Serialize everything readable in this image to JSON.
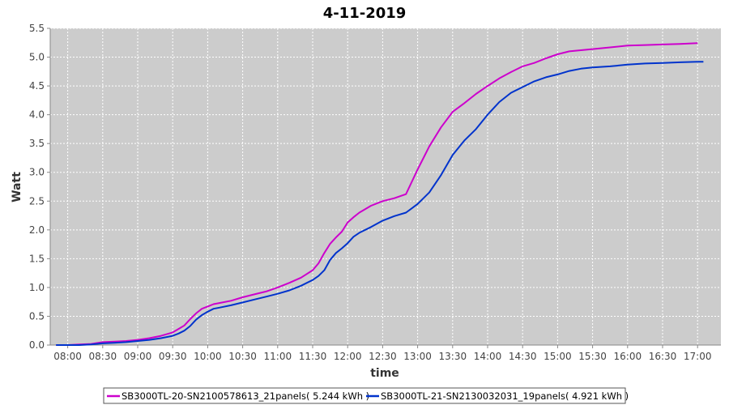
{
  "chart_data": {
    "type": "line",
    "title": "4-11-2019",
    "xlabel": "time",
    "ylabel": "Watt",
    "ylim": [
      0,
      5.5
    ],
    "xlim": [
      "07:45",
      "17:20"
    ],
    "x_ticks": [
      "08:00",
      "08:30",
      "09:00",
      "09:30",
      "10:00",
      "10:30",
      "11:00",
      "11:30",
      "12:00",
      "12:30",
      "13:00",
      "13:30",
      "14:00",
      "14:30",
      "15:00",
      "15:30",
      "16:00",
      "16:30",
      "17:00"
    ],
    "y_ticks": [
      "0.0",
      "0.5",
      "1.0",
      "1.5",
      "2.0",
      "2.5",
      "3.0",
      "3.5",
      "4.0",
      "4.5",
      "5.0",
      "5.5"
    ],
    "grid": true,
    "legend_position": "bottom",
    "colors": {
      "plot_background": "#cccccc",
      "series1": "#cc00cc",
      "series2": "#0033cc"
    },
    "series": [
      {
        "name": "SB3000TL-20-SN2100578613_21panels( 5.244 kWh )",
        "color": "#cc00cc",
        "x": [
          "07:50",
          "08:00",
          "08:10",
          "08:20",
          "08:30",
          "08:40",
          "08:50",
          "09:00",
          "09:10",
          "09:20",
          "09:30",
          "09:35",
          "09:40",
          "09:45",
          "09:50",
          "09:55",
          "10:00",
          "10:05",
          "10:10",
          "10:20",
          "10:30",
          "10:40",
          "10:50",
          "11:00",
          "11:10",
          "11:20",
          "11:30",
          "11:35",
          "11:40",
          "11:45",
          "11:50",
          "11:55",
          "12:00",
          "12:05",
          "12:10",
          "12:20",
          "12:30",
          "12:40",
          "12:50",
          "13:00",
          "13:05",
          "13:10",
          "13:20",
          "13:30",
          "13:40",
          "13:50",
          "14:00",
          "14:10",
          "14:20",
          "14:30",
          "14:40",
          "14:50",
          "15:00",
          "15:10",
          "15:20",
          "15:30",
          "15:45",
          "16:00",
          "16:15",
          "16:30",
          "16:45",
          "17:00"
        ],
        "y": [
          0.0,
          0.0,
          0.01,
          0.02,
          0.05,
          0.06,
          0.07,
          0.09,
          0.12,
          0.16,
          0.22,
          0.28,
          0.34,
          0.45,
          0.55,
          0.63,
          0.67,
          0.71,
          0.73,
          0.77,
          0.83,
          0.88,
          0.93,
          1.0,
          1.08,
          1.17,
          1.3,
          1.42,
          1.6,
          1.76,
          1.87,
          1.97,
          2.13,
          2.22,
          2.3,
          2.42,
          2.5,
          2.55,
          2.62,
          3.05,
          3.25,
          3.45,
          3.78,
          4.05,
          4.2,
          4.36,
          4.5,
          4.63,
          4.74,
          4.84,
          4.9,
          4.98,
          5.05,
          5.1,
          5.12,
          5.14,
          5.17,
          5.2,
          5.21,
          5.22,
          5.23,
          5.244
        ]
      },
      {
        "name": "SB3000TL-21-SN2130032031_19panels( 4.921 kWh )",
        "color": "#0033cc",
        "x": [
          "07:50",
          "08:00",
          "08:10",
          "08:20",
          "08:30",
          "08:40",
          "08:50",
          "09:00",
          "09:10",
          "09:20",
          "09:30",
          "09:35",
          "09:40",
          "09:45",
          "09:50",
          "09:55",
          "10:00",
          "10:05",
          "10:10",
          "10:20",
          "10:30",
          "10:40",
          "10:50",
          "11:00",
          "11:10",
          "11:20",
          "11:30",
          "11:35",
          "11:40",
          "11:45",
          "11:50",
          "11:55",
          "12:00",
          "12:05",
          "12:10",
          "12:20",
          "12:30",
          "12:40",
          "12:50",
          "13:00",
          "13:10",
          "13:20",
          "13:30",
          "13:40",
          "13:50",
          "14:00",
          "14:10",
          "14:20",
          "14:30",
          "14:40",
          "14:50",
          "15:00",
          "15:10",
          "15:20",
          "15:30",
          "15:45",
          "16:00",
          "16:15",
          "16:30",
          "16:45",
          "17:00",
          "17:05"
        ],
        "y": [
          0.0,
          0.0,
          0.0,
          0.01,
          0.03,
          0.04,
          0.05,
          0.07,
          0.09,
          0.12,
          0.16,
          0.2,
          0.25,
          0.33,
          0.44,
          0.52,
          0.58,
          0.63,
          0.65,
          0.69,
          0.74,
          0.79,
          0.84,
          0.89,
          0.95,
          1.03,
          1.13,
          1.2,
          1.3,
          1.48,
          1.6,
          1.68,
          1.77,
          1.88,
          1.95,
          2.05,
          2.16,
          2.24,
          2.3,
          2.45,
          2.65,
          2.95,
          3.3,
          3.55,
          3.75,
          4.0,
          4.22,
          4.38,
          4.48,
          4.58,
          4.65,
          4.7,
          4.76,
          4.8,
          4.82,
          4.84,
          4.87,
          4.89,
          4.9,
          4.91,
          4.92,
          4.921
        ]
      }
    ]
  }
}
